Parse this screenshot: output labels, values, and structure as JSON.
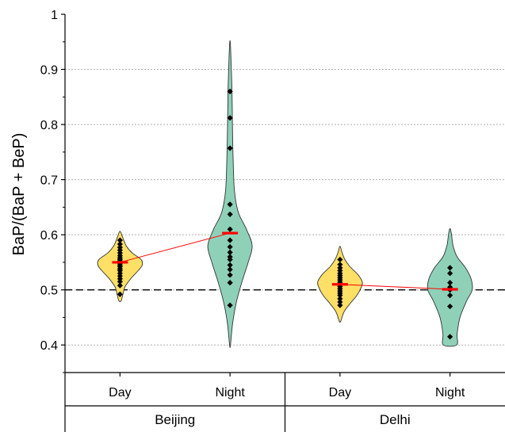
{
  "chart_data": {
    "type": "violin",
    "ylabel": "BaP/(BaP + BeP)",
    "ylim": [
      0.35,
      1.0
    ],
    "yticks": [
      0.4,
      0.5,
      0.6,
      0.7,
      0.8,
      0.9,
      1
    ],
    "ytick_labels": [
      "0.4",
      "0.5",
      "0.6",
      "0.7",
      "0.8",
      "0.9",
      "1"
    ],
    "grid": "horizontal dotted",
    "reference_line": 0.5,
    "groups": [
      {
        "name": "Beijing",
        "categories": [
          "Day",
          "Night"
        ]
      },
      {
        "name": "Delhi",
        "categories": [
          "Day",
          "Night"
        ]
      }
    ],
    "series": [
      {
        "group": "Beijing",
        "category": "Day",
        "color": "#ffe066",
        "median": 0.55,
        "range": [
          0.48,
          0.605
        ],
        "points": [
          0.492,
          0.508,
          0.515,
          0.52,
          0.525,
          0.53,
          0.535,
          0.538,
          0.542,
          0.545,
          0.548,
          0.552,
          0.555,
          0.558,
          0.562,
          0.567,
          0.572,
          0.577,
          0.583,
          0.59
        ],
        "profile": [
          [
            0.48,
            0.05
          ],
          [
            0.49,
            0.12
          ],
          [
            0.505,
            0.22
          ],
          [
            0.52,
            0.48
          ],
          [
            0.535,
            0.82
          ],
          [
            0.545,
            1.0
          ],
          [
            0.555,
            0.95
          ],
          [
            0.567,
            0.55
          ],
          [
            0.58,
            0.28
          ],
          [
            0.595,
            0.12
          ],
          [
            0.605,
            0.03
          ]
        ]
      },
      {
        "group": "Beijing",
        "category": "Night",
        "color": "#8ed1b8",
        "median": 0.603,
        "range": [
          0.4,
          0.95
        ],
        "points": [
          0.472,
          0.513,
          0.527,
          0.537,
          0.545,
          0.555,
          0.56,
          0.568,
          0.578,
          0.59,
          0.61,
          0.637,
          0.655,
          0.757,
          0.812,
          0.86
        ],
        "profile": [
          [
            0.4,
            0.02
          ],
          [
            0.44,
            0.12
          ],
          [
            0.48,
            0.3
          ],
          [
            0.52,
            0.58
          ],
          [
            0.55,
            0.82
          ],
          [
            0.58,
            1.0
          ],
          [
            0.61,
            0.74
          ],
          [
            0.64,
            0.38
          ],
          [
            0.68,
            0.2
          ],
          [
            0.74,
            0.14
          ],
          [
            0.8,
            0.11
          ],
          [
            0.86,
            0.09
          ],
          [
            0.9,
            0.06
          ],
          [
            0.93,
            0.035
          ],
          [
            0.95,
            0.01
          ]
        ]
      },
      {
        "group": "Delhi",
        "category": "Day",
        "color": "#ffe066",
        "median": 0.51,
        "range": [
          0.443,
          0.578
        ],
        "points": [
          0.472,
          0.478,
          0.484,
          0.49,
          0.494,
          0.498,
          0.502,
          0.506,
          0.51,
          0.514,
          0.518,
          0.522,
          0.526,
          0.53,
          0.535,
          0.54,
          0.546,
          0.555
        ],
        "profile": [
          [
            0.443,
            0.03
          ],
          [
            0.46,
            0.18
          ],
          [
            0.475,
            0.45
          ],
          [
            0.49,
            0.76
          ],
          [
            0.505,
            0.96
          ],
          [
            0.515,
            1.0
          ],
          [
            0.528,
            0.8
          ],
          [
            0.542,
            0.45
          ],
          [
            0.555,
            0.22
          ],
          [
            0.568,
            0.09
          ],
          [
            0.578,
            0.02
          ]
        ]
      },
      {
        "group": "Delhi",
        "category": "Night",
        "color": "#8ed1b8",
        "median": 0.501,
        "range": [
          0.4,
          0.61
        ],
        "points": [
          0.415,
          0.47,
          0.49,
          0.5,
          0.505,
          0.513,
          0.53,
          0.54
        ],
        "profile": [
          [
            0.4,
            0.3
          ],
          [
            0.42,
            0.32
          ],
          [
            0.45,
            0.45
          ],
          [
            0.48,
            0.75
          ],
          [
            0.5,
            1.0
          ],
          [
            0.52,
            0.95
          ],
          [
            0.54,
            0.7
          ],
          [
            0.56,
            0.32
          ],
          [
            0.58,
            0.14
          ],
          [
            0.6,
            0.07
          ],
          [
            0.61,
            0.02
          ]
        ]
      }
    ],
    "median_connections": [
      [
        "Beijing",
        "Day",
        "Night"
      ],
      [
        "Delhi",
        "Day",
        "Night"
      ]
    ],
    "colors": {
      "day_fill": "#ffe066",
      "night_fill": "#8ed1b8",
      "median": "#ff0000",
      "point": "#000000"
    }
  }
}
